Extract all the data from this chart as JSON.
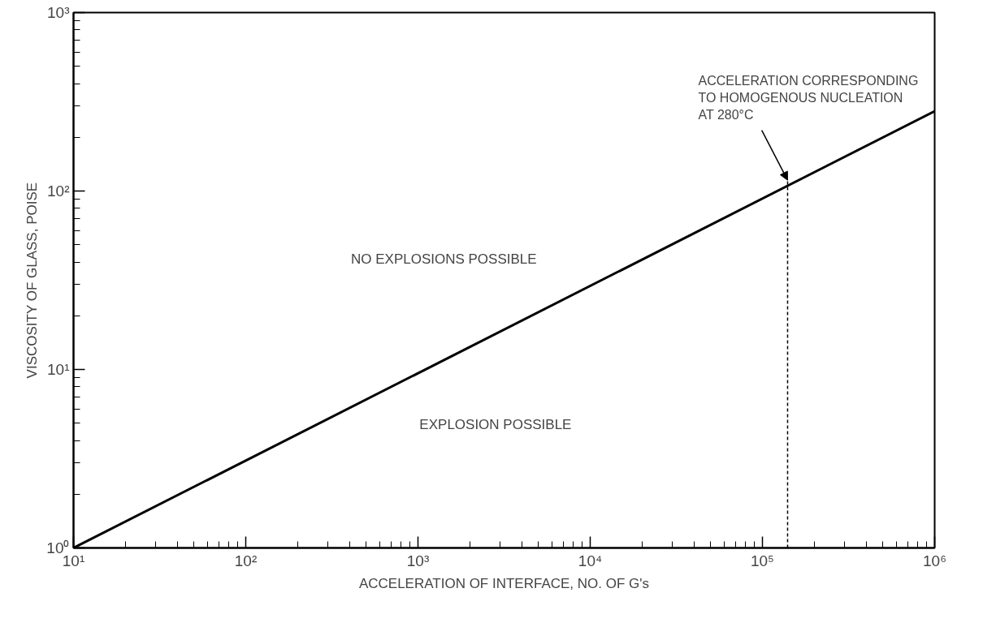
{
  "chart_data": {
    "type": "line",
    "xlabel": "ACCELERATION OF INTERFACE, NO. OF G's",
    "ylabel": "VISCOSITY OF GLASS, POISE",
    "log": "xy",
    "grid": false,
    "marker": "none",
    "xlim": [
      10,
      1000000
    ],
    "ylim": [
      1,
      1000
    ],
    "xticks": [
      {
        "value": 10,
        "label": "10¹"
      },
      {
        "value": 100,
        "label": "10²"
      },
      {
        "value": 1000,
        "label": "10³"
      },
      {
        "value": 10000,
        "label": "10⁴"
      },
      {
        "value": 100000,
        "label": "10⁵"
      },
      {
        "value": 1000000,
        "label": "10⁶"
      }
    ],
    "yticks": [
      {
        "value": 1,
        "label": "10⁰"
      },
      {
        "value": 10,
        "label": "10¹"
      },
      {
        "value": 100,
        "label": "10²"
      },
      {
        "value": 1000,
        "label": "10³"
      }
    ],
    "series": [
      {
        "color": "#000000",
        "line_style": "solid",
        "x": [
          10,
          1000000
        ],
        "values": [
          1,
          280
        ]
      },
      {
        "color": "#000000",
        "line_style": "dashed",
        "x": [
          140000,
          140000
        ],
        "values": [
          1,
          115
        ]
      }
    ],
    "annotations": [
      "NO EXPLOSIONS POSSIBLE",
      "EXPLOSION POSSIBLE",
      {
        "text": "ACCELERATION CORRESPONDING\nTO HOMOGENOUS NUCLEATION\nAT 280°C",
        "x": 140000,
        "y": 115
      }
    ]
  }
}
